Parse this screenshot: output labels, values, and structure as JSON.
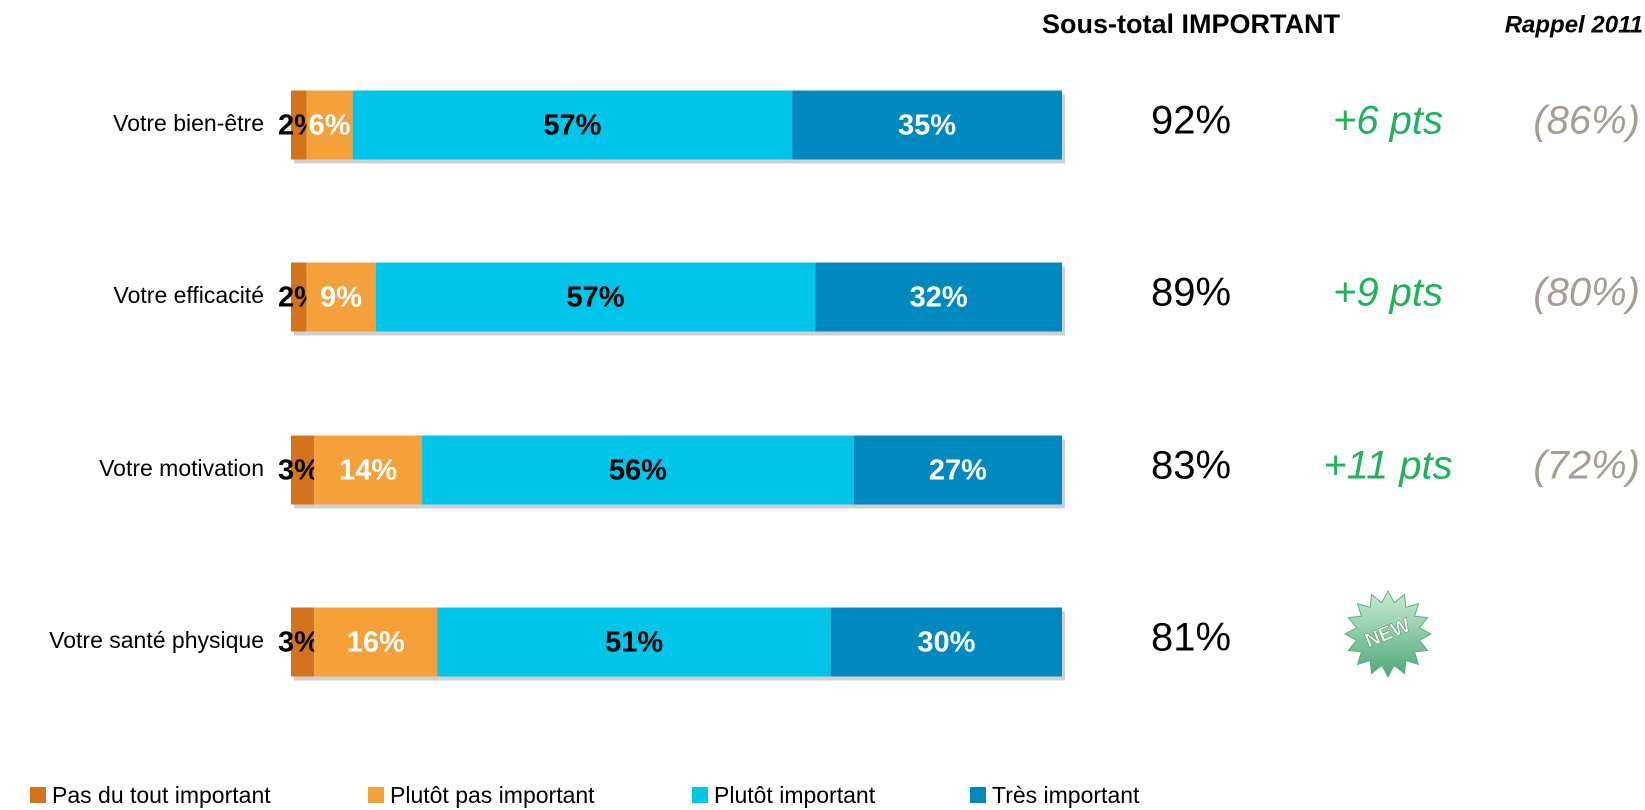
{
  "chart_data": {
    "type": "bar",
    "orientation": "horizontal",
    "stacked": true,
    "categories": [
      "Votre bien-être",
      "Votre efficacité",
      "Votre motivation",
      "Votre santé physique"
    ],
    "series": [
      {
        "name": "Pas du tout important",
        "color": "#d3741c",
        "label_color": "#000000",
        "values": [
          2,
          2,
          3,
          3
        ],
        "value_labels": [
          "2%",
          "2%",
          "3%",
          "3%"
        ]
      },
      {
        "name": "Plutôt pas important",
        "color": "#f4a03b",
        "label_color": "#ffffff",
        "values": [
          6,
          9,
          14,
          16
        ],
        "value_labels": [
          "6%",
          "9%",
          "14%",
          "16%"
        ]
      },
      {
        "name": "Plutôt important",
        "color": "#00c4e8",
        "label_color": "#000000",
        "values": [
          57,
          57,
          56,
          51
        ],
        "value_labels": [
          "57%",
          "57%",
          "56%",
          "51%"
        ]
      },
      {
        "name": "Très important",
        "color": "#0089bf",
        "label_color": "#ffffff",
        "values": [
          35,
          32,
          27,
          30
        ],
        "value_labels": [
          "35%",
          "32%",
          "27%",
          "30%"
        ]
      }
    ],
    "columns": [
      {
        "title": "Sous-total IMPORTANT",
        "color": "#000000",
        "values": [
          92,
          89,
          83,
          81
        ],
        "value_labels": [
          "92%",
          "89%",
          "83%",
          "81%"
        ]
      },
      {
        "color": "#1fb25a",
        "values": [
          6,
          9,
          11,
          null
        ],
        "value_labels": [
          "+6 pts",
          "+9 pts",
          "+11 pts",
          null
        ]
      },
      {
        "title": "Rappel 2011",
        "color": "#a59d94",
        "values": [
          86,
          80,
          72,
          null
        ],
        "value_labels": [
          "(86%)",
          "(80%)",
          "(72%)",
          null
        ]
      }
    ],
    "annotation": "NEW"
  }
}
